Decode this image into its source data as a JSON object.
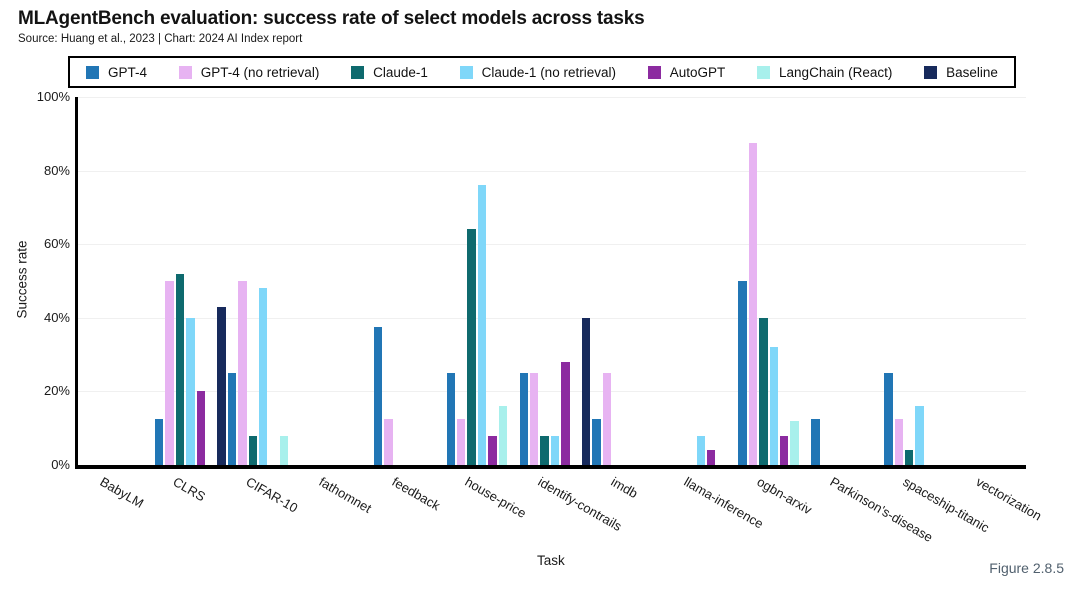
{
  "header": {
    "title": "MLAgentBench evaluation: success rate of select models across tasks",
    "source": "Source: Huang et al., 2023 | Chart: 2024 AI Index report"
  },
  "chart_data": {
    "type": "bar",
    "title": "MLAgentBench evaluation: success rate of select models across tasks",
    "categories": [
      "BabyLM",
      "CLRS",
      "CIFAR-10",
      "fathomnet",
      "feedback",
      "house-price",
      "identify-contrails",
      "imdb",
      "llama-inference",
      "ogbn-arxiv",
      "Parkinson's-disease",
      "spaceship-titanic",
      "vectorization"
    ],
    "series": [
      {
        "name": "GPT-4",
        "color": "#2176b5",
        "values": [
          0,
          12.5,
          25,
          0,
          37.5,
          25,
          25,
          12.5,
          0,
          50,
          12.5,
          25,
          0
        ]
      },
      {
        "name": "GPT-4 (no retrieval)",
        "color": "#e7b3f2",
        "values": [
          0,
          50,
          50,
          0,
          12.5,
          12.5,
          25,
          25,
          0,
          87.5,
          0,
          12.5,
          0
        ]
      },
      {
        "name": "Claude-1",
        "color": "#0e6a6e",
        "values": [
          0,
          52,
          8,
          0,
          0,
          64,
          8,
          0,
          0,
          40,
          0,
          4,
          0
        ]
      },
      {
        "name": "Claude-1 (no retrieval)",
        "color": "#7fd7f9",
        "values": [
          0,
          40,
          48,
          0,
          0,
          76,
          8,
          0,
          8,
          32,
          0,
          16,
          0
        ]
      },
      {
        "name": "AutoGPT",
        "color": "#8c2ba0",
        "values": [
          0,
          20,
          0,
          0,
          0,
          8,
          28,
          0,
          4,
          8,
          0,
          0,
          0
        ]
      },
      {
        "name": "LangChain (React)",
        "color": "#a8f0ec",
        "values": [
          0,
          0,
          8,
          0,
          0,
          16,
          0,
          0,
          0,
          12,
          0,
          0,
          0
        ]
      },
      {
        "name": "Baseline",
        "color": "#172a5c",
        "values": [
          0,
          43,
          0,
          0,
          0,
          0,
          40,
          0,
          0,
          0,
          0,
          0,
          0
        ]
      }
    ],
    "xlabel": "Task",
    "ylabel": "Success rate",
    "ylim": [
      0,
      100
    ],
    "ytick_values": [
      0,
      20,
      40,
      60,
      80,
      100
    ],
    "ytick_labels": [
      "0%",
      "20%",
      "40%",
      "60%",
      "80%",
      "100%"
    ],
    "grid": true,
    "legend_position": "top"
  },
  "footer": {
    "figure_label": "Figure 2.8.5"
  },
  "colors": {
    "axis": "#000000",
    "gridline": "#f0f0f0",
    "figure_label": "#51606e"
  }
}
